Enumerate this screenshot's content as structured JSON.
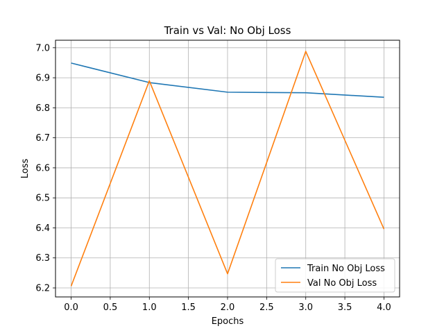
{
  "chart_data": {
    "type": "line",
    "title": "Train vs Val: No Obj Loss",
    "xlabel": "Epochs",
    "ylabel": "Loss",
    "x": [
      0,
      1,
      2,
      3,
      4
    ],
    "series": [
      {
        "name": "Train No Obj Loss",
        "color": "#1f77b4",
        "values": [
          6.949,
          6.884,
          6.852,
          6.85,
          6.835
        ]
      },
      {
        "name": "Val No Obj Loss",
        "color": "#ff7f0e",
        "values": [
          6.206,
          6.89,
          6.247,
          6.988,
          6.396
        ]
      }
    ],
    "xlim": [
      -0.2,
      4.2
    ],
    "ylim": [
      6.17,
      7.025
    ],
    "xticks": [
      0.0,
      0.5,
      1.0,
      1.5,
      2.0,
      2.5,
      3.0,
      3.5,
      4.0
    ],
    "xtick_labels": [
      "0.0",
      "0.5",
      "1.0",
      "1.5",
      "2.0",
      "2.5",
      "3.0",
      "3.5",
      "4.0"
    ],
    "yticks": [
      6.2,
      6.3,
      6.4,
      6.5,
      6.6,
      6.7,
      6.8,
      6.9,
      7.0
    ],
    "ytick_labels": [
      "6.2",
      "6.3",
      "6.4",
      "6.5",
      "6.6",
      "6.7",
      "6.8",
      "6.9",
      "7.0"
    ],
    "grid": true,
    "legend": "lower-right"
  }
}
